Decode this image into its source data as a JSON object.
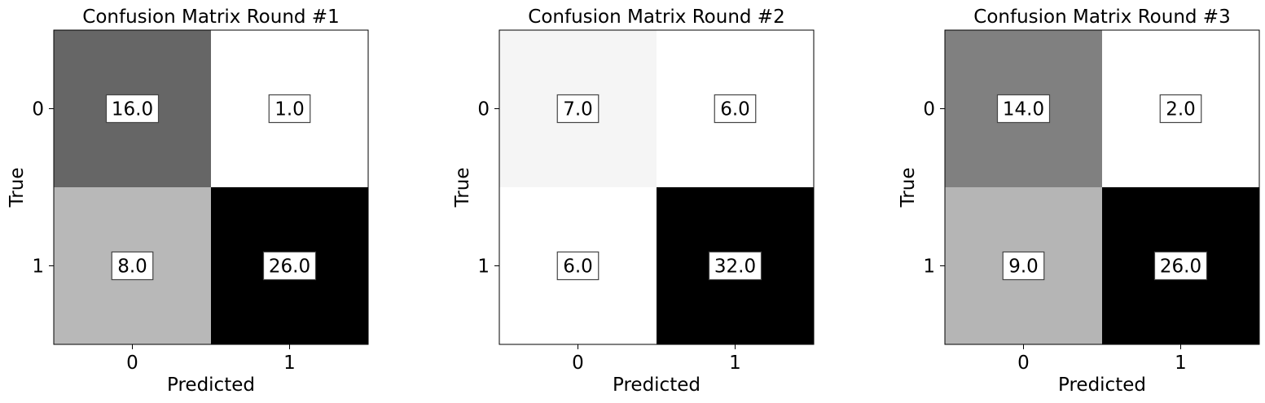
{
  "chart_data": [
    {
      "type": "heatmap",
      "title": "Confusion Matrix Round #1",
      "xlabel": "Predicted",
      "ylabel": "True",
      "x_categories": [
        "0",
        "1"
      ],
      "y_categories": [
        "0",
        "1"
      ],
      "values": [
        [
          16.0,
          1.0
        ],
        [
          8.0,
          26.0
        ]
      ],
      "value_labels": [
        [
          "16.0",
          "1.0"
        ],
        [
          "8.0",
          "26.0"
        ]
      ],
      "colormap": "gray_r"
    },
    {
      "type": "heatmap",
      "title": "Confusion Matrix Round #2",
      "xlabel": "Predicted",
      "ylabel": "True",
      "x_categories": [
        "0",
        "1"
      ],
      "y_categories": [
        "0",
        "1"
      ],
      "values": [
        [
          7.0,
          6.0
        ],
        [
          6.0,
          32.0
        ]
      ],
      "value_labels": [
        [
          "7.0",
          "6.0"
        ],
        [
          "6.0",
          "32.0"
        ]
      ],
      "colormap": "gray_r"
    },
    {
      "type": "heatmap",
      "title": "Confusion Matrix Round #3",
      "xlabel": "Predicted",
      "ylabel": "True",
      "x_categories": [
        "0",
        "1"
      ],
      "y_categories": [
        "0",
        "1"
      ],
      "values": [
        [
          14.0,
          2.0
        ],
        [
          9.0,
          26.0
        ]
      ],
      "value_labels": [
        [
          "14.0",
          "2.0"
        ],
        [
          "9.0",
          "26.0"
        ]
      ],
      "colormap": "gray_r"
    }
  ]
}
